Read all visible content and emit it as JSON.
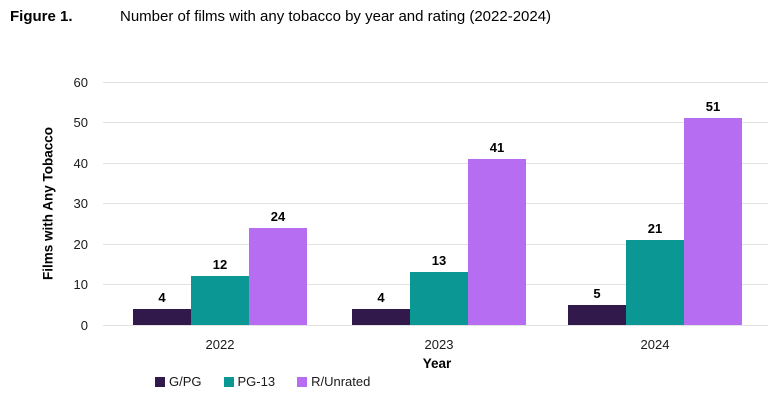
{
  "figure": {
    "label": "Figure 1.",
    "title": "Number of films with any tobacco by year and rating (2022-2024)"
  },
  "chart_data": {
    "type": "bar",
    "title": "Number of films with any tobacco by year and rating (2022-2024)",
    "categories": [
      "2022",
      "2023",
      "2024"
    ],
    "series": [
      {
        "name": "G/PG",
        "color": "#32194c",
        "values": [
          4,
          4,
          5
        ]
      },
      {
        "name": "PG-13",
        "color": "#0b9894",
        "values": [
          12,
          13,
          21
        ]
      },
      {
        "name": "R/Unrated",
        "color": "#b76df1",
        "values": [
          24,
          41,
          51
        ]
      }
    ],
    "xlabel": "Year",
    "ylabel": "Films with Any Tobacco",
    "ylim": [
      0,
      60
    ],
    "ytick_step": 10,
    "yticks": [
      0,
      10,
      20,
      30,
      40,
      50,
      60
    ],
    "grid": true,
    "bar_labels": true,
    "legend_position": "bottom"
  },
  "colors": {
    "background": "#ffffff",
    "gridline": "#e2e2e2",
    "text": "#1a1a1a"
  }
}
